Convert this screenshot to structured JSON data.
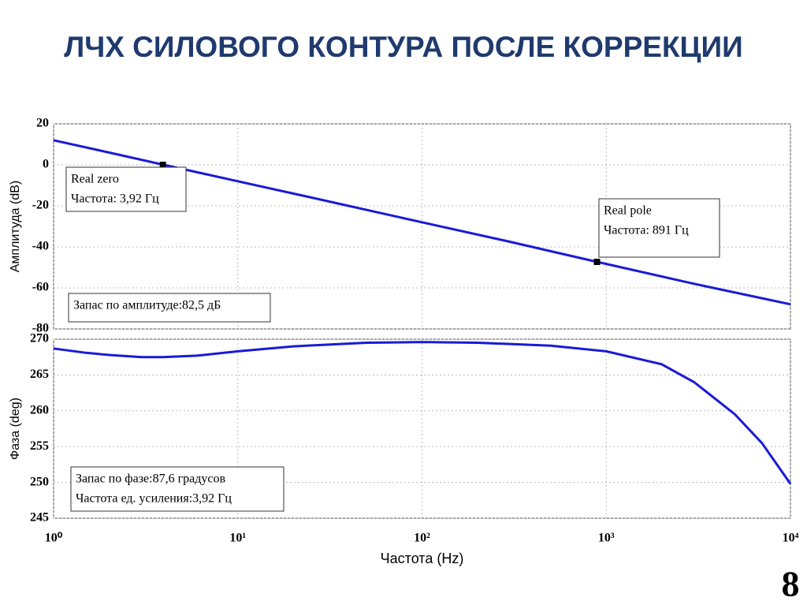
{
  "title": "ЛЧХ СИЛОВОГО КОНТУРА ПОСЛЕ КОРРЕКЦИИ",
  "page_number": "8",
  "chart_data": [
    {
      "type": "line",
      "xscale": "log",
      "grid": true,
      "ylabel": "Амплитуда (dB)",
      "x": [
        1,
        2,
        3.92,
        10,
        30,
        100,
        300,
        891,
        1000,
        3000,
        10000
      ],
      "series": [
        {
          "color": "#1a1ad8",
          "values": [
            12,
            6,
            0.1,
            -8,
            -17.5,
            -28,
            -37.5,
            -47.3,
            -48.3,
            -58,
            -68
          ]
        }
      ],
      "xlim": [
        1,
        10000
      ],
      "xticks": [
        {
          "value": 1,
          "label": "10⁰"
        },
        {
          "value": 10,
          "label": "10¹"
        },
        {
          "value": 100,
          "label": "10²"
        },
        {
          "value": 1000,
          "label": "10³"
        },
        {
          "value": 10000,
          "label": "10⁴"
        }
      ],
      "ylim": [
        -80,
        20
      ],
      "yticks": [
        -80,
        -60,
        -40,
        -20,
        0,
        20
      ],
      "annotations": [
        {
          "x": 3.92,
          "y": 0,
          "lines": [
            "Real zero",
            "Частота: 3,92 Гц"
          ]
        },
        {
          "x": 891,
          "y": -47.3,
          "lines": [
            "Real pole",
            "Частота: 891 Гц"
          ]
        },
        {
          "lines": [
            "Запас по амплитуде:82,5 дБ"
          ]
        }
      ]
    },
    {
      "type": "line",
      "xscale": "log",
      "grid": true,
      "ylabel": "Фаза (deg)",
      "xlabel": "Частота (Hz)",
      "x": [
        1,
        1.5,
        2,
        3,
        3.92,
        6,
        10,
        20,
        50,
        100,
        200,
        500,
        1000,
        2000,
        3000,
        5000,
        7000,
        10000
      ],
      "series": [
        {
          "color": "#1a1ad8",
          "values": [
            268.7,
            268.1,
            267.8,
            267.5,
            267.5,
            267.7,
            268.3,
            269,
            269.5,
            269.6,
            269.5,
            269.1,
            268.3,
            266.5,
            264,
            259.5,
            255.5,
            249.8
          ]
        }
      ],
      "xlim": [
        1,
        10000
      ],
      "xticks": [
        {
          "value": 1,
          "label": "10⁰"
        },
        {
          "value": 10,
          "label": "10¹"
        },
        {
          "value": 100,
          "label": "10²"
        },
        {
          "value": 1000,
          "label": "10³"
        },
        {
          "value": 10000,
          "label": "10⁴"
        }
      ],
      "ylim": [
        245,
        270
      ],
      "yticks": [
        245,
        250,
        255,
        260,
        265,
        270
      ],
      "annotations": [
        {
          "lines": [
            "Запас по фазе:87,6 градусов",
            "Частота ед. усиления:3,92 Гц"
          ]
        }
      ]
    }
  ]
}
